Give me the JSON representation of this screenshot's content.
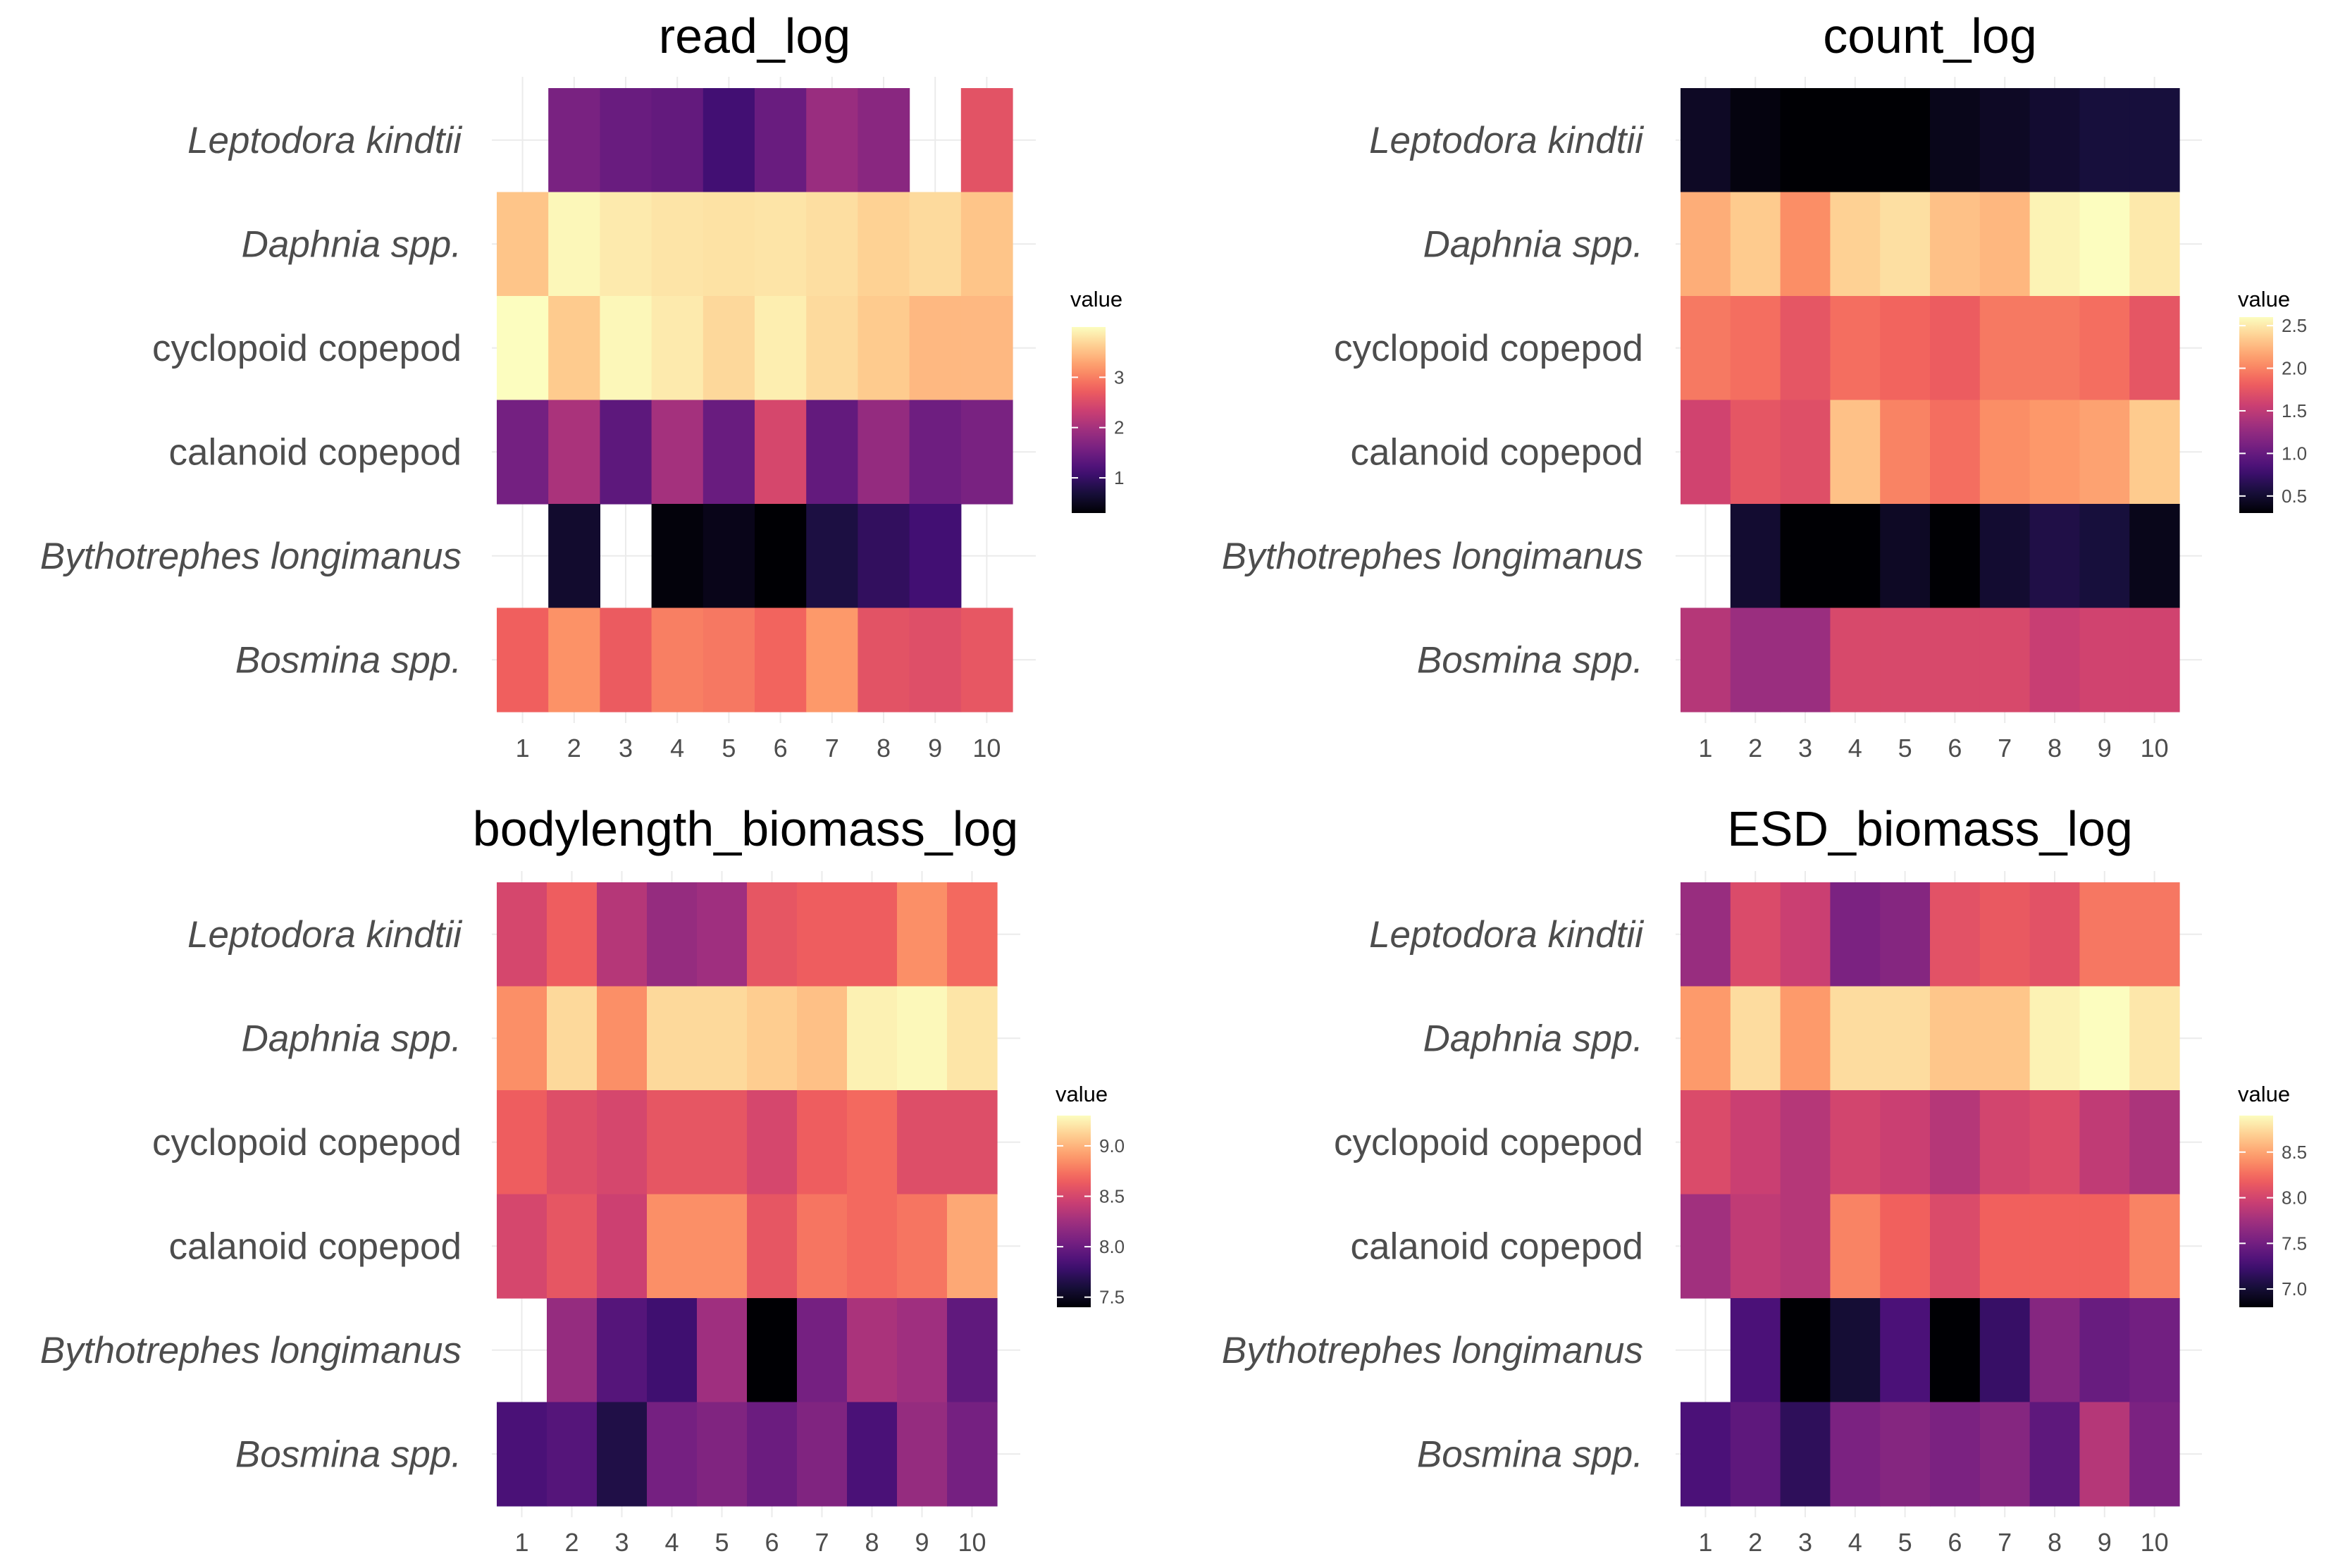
{
  "figure": {
    "legend_title": "value",
    "rows": [
      "Leptodora kindtii",
      "Daphnia spp.",
      "cyclopoid copepod",
      "calanoid copepod",
      "Bythotrephes longimanus",
      "Bosmina spp."
    ],
    "italic_rows": [
      "Leptodora kindtii",
      "Daphnia spp.",
      "Bythotrephes longimanus",
      "Bosmina spp."
    ],
    "columns": [
      "1",
      "2",
      "3",
      "4",
      "5",
      "6",
      "7",
      "8",
      "9",
      "10"
    ],
    "palette": [
      "#000004",
      "#180f3d",
      "#440f76",
      "#721f81",
      "#9e2f7f",
      "#cd4071",
      "#f1605d",
      "#fd9668",
      "#feca8d",
      "#fcfdbf"
    ]
  },
  "chart_data": [
    {
      "type": "heatmap",
      "title": "read_log",
      "xlabel": "",
      "ylabel": "",
      "color_range": [
        0.3,
        4.0
      ],
      "legend_ticks": [
        "1",
        "2",
        "3"
      ],
      "legend_tick_values": [
        1,
        2,
        3
      ],
      "values": [
        [
          null,
          1.6,
          1.45,
          1.4,
          1.1,
          1.45,
          1.9,
          1.75,
          null,
          2.6
        ],
        [
          3.55,
          3.95,
          3.85,
          3.8,
          3.78,
          3.8,
          3.75,
          3.65,
          3.72,
          3.55
        ],
        [
          4.0,
          3.6,
          3.95,
          3.85,
          3.7,
          3.88,
          3.72,
          3.6,
          3.45,
          3.45
        ],
        [
          1.55,
          2.05,
          1.35,
          2.0,
          1.45,
          2.45,
          1.4,
          1.85,
          1.5,
          1.6
        ],
        [
          null,
          0.6,
          null,
          0.35,
          0.45,
          0.3,
          0.75,
          0.95,
          1.1,
          null
        ],
        [
          2.75,
          3.15,
          2.7,
          3.0,
          2.95,
          2.8,
          3.2,
          2.6,
          2.55,
          2.65
        ]
      ]
    },
    {
      "type": "heatmap",
      "title": "count_log",
      "xlabel": "",
      "ylabel": "",
      "color_range": [
        0.3,
        2.6
      ],
      "legend_ticks": [
        "0.5",
        "1.0",
        "1.5",
        "2.0",
        "2.5"
      ],
      "legend_tick_values": [
        0.5,
        1.0,
        1.5,
        2.0,
        2.5
      ],
      "values": [
        [
          0.45,
          0.35,
          0.3,
          0.3,
          0.3,
          0.4,
          0.45,
          0.5,
          0.55,
          0.55
        ],
        [
          2.2,
          2.35,
          2.05,
          2.38,
          2.45,
          2.3,
          2.25,
          2.55,
          2.6,
          2.5
        ],
        [
          1.95,
          1.9,
          1.75,
          1.9,
          1.85,
          1.8,
          1.95,
          1.95,
          1.9,
          1.75
        ],
        [
          1.6,
          1.75,
          1.7,
          2.3,
          2.0,
          1.9,
          2.05,
          2.1,
          2.15,
          2.35
        ],
        [
          null,
          0.5,
          0.3,
          0.3,
          0.45,
          0.3,
          0.5,
          0.6,
          0.55,
          0.4
        ],
        [
          1.45,
          1.3,
          1.3,
          1.65,
          1.65,
          1.65,
          1.65,
          1.55,
          1.6,
          1.6
        ]
      ]
    },
    {
      "type": "heatmap",
      "title": "bodylength_biomass_log",
      "xlabel": "",
      "ylabel": "",
      "color_range": [
        7.4,
        9.3
      ],
      "legend_ticks": [
        "7.5",
        "8.0",
        "8.5",
        "9.0"
      ],
      "legend_tick_values": [
        7.5,
        8.0,
        8.5,
        9.0
      ],
      "values": [
        [
          8.5,
          8.65,
          8.35,
          8.2,
          8.25,
          8.6,
          8.65,
          8.65,
          8.85,
          8.7
        ],
        [
          8.85,
          9.15,
          8.85,
          9.15,
          9.15,
          9.1,
          9.05,
          9.25,
          9.28,
          9.2
        ],
        [
          8.65,
          8.55,
          8.5,
          8.6,
          8.6,
          8.5,
          8.65,
          8.7,
          8.55,
          8.55
        ],
        [
          8.5,
          8.6,
          8.45,
          8.85,
          8.85,
          8.6,
          8.75,
          8.7,
          8.75,
          8.95
        ],
        [
          null,
          8.2,
          7.9,
          7.8,
          8.25,
          7.4,
          8.05,
          8.3,
          8.25,
          7.95
        ],
        [
          7.85,
          7.9,
          7.65,
          8.05,
          8.1,
          8.0,
          8.1,
          7.85,
          8.2,
          8.05
        ]
      ]
    },
    {
      "type": "heatmap",
      "title": "ESD_biomass_log",
      "xlabel": "",
      "ylabel": "",
      "color_range": [
        6.8,
        8.9
      ],
      "legend_ticks": [
        "7.0",
        "7.5",
        "8.0",
        "8.5"
      ],
      "legend_tick_values": [
        7.0,
        7.5,
        8.0,
        8.5
      ],
      "values": [
        [
          7.7,
          8.05,
          7.95,
          7.55,
          7.6,
          8.1,
          8.15,
          8.1,
          8.3,
          8.3
        ],
        [
          8.45,
          8.75,
          8.45,
          8.75,
          8.75,
          8.65,
          8.65,
          8.85,
          8.9,
          8.8
        ],
        [
          8.05,
          7.95,
          7.85,
          8.0,
          7.95,
          7.85,
          8.0,
          8.05,
          7.9,
          7.8
        ],
        [
          7.75,
          7.9,
          7.85,
          8.35,
          8.2,
          8.05,
          8.2,
          8.2,
          8.2,
          8.35
        ],
        [
          null,
          7.3,
          6.8,
          7.0,
          7.3,
          6.8,
          7.2,
          7.6,
          7.45,
          7.5
        ],
        [
          7.3,
          7.4,
          7.15,
          7.55,
          7.6,
          7.55,
          7.6,
          7.4,
          7.85,
          7.55
        ]
      ]
    }
  ]
}
